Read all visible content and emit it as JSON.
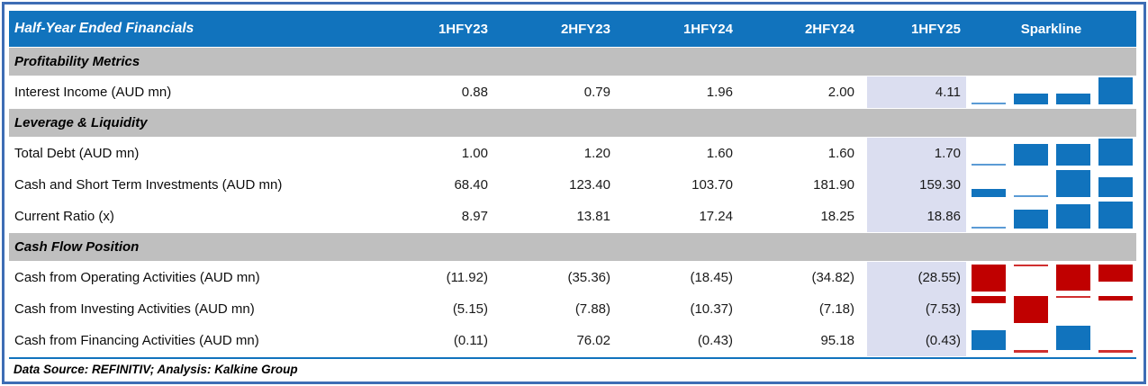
{
  "table": {
    "title": "Half-Year Ended Financials",
    "columns": [
      "1HFY23",
      "2HFY23",
      "1HFY24",
      "2HFY24",
      "1HFY25"
    ],
    "sparkline_header": "Sparkline",
    "sections": [
      {
        "label": "Profitability Metrics",
        "rows": [
          {
            "label": "Interest Income (AUD mn)",
            "values": [
              "0.88",
              "0.79",
              "1.96",
              "2.00",
              "4.11"
            ],
            "spark": [
              0.79,
              1.96,
              2.0,
              4.11
            ]
          }
        ]
      },
      {
        "label": "Leverage & Liquidity",
        "rows": [
          {
            "label": "Total Debt (AUD mn)",
            "values": [
              "1.00",
              "1.20",
              "1.60",
              "1.60",
              "1.70"
            ],
            "spark": [
              1.2,
              1.6,
              1.6,
              1.7
            ]
          },
          {
            "label": "Cash and Short Term Investments (AUD mn)",
            "values": [
              "68.40",
              "123.40",
              "103.70",
              "181.90",
              "159.30"
            ],
            "spark": [
              123.4,
              103.7,
              181.9,
              159.3
            ]
          },
          {
            "label": "Current Ratio (x)",
            "values": [
              "8.97",
              "13.81",
              "17.24",
              "18.25",
              "18.86"
            ],
            "spark": [
              13.81,
              17.24,
              18.25,
              18.86
            ]
          }
        ]
      },
      {
        "label": "Cash Flow Position",
        "rows": [
          {
            "label": "Cash from Operating Activities (AUD mn)",
            "values": [
              "(11.92)",
              "(35.36)",
              "(18.45)",
              "(34.82)",
              "(28.55)"
            ],
            "spark": [
              -35.36,
              -18.45,
              -34.82,
              -28.55
            ]
          },
          {
            "label": "Cash from Investing Activities (AUD mn)",
            "values": [
              "(5.15)",
              "(7.88)",
              "(10.37)",
              "(7.18)",
              "(7.53)"
            ],
            "spark": [
              -7.88,
              -10.37,
              -7.18,
              -7.53
            ]
          },
          {
            "label": "Cash from Financing Activities (AUD mn)",
            "values": [
              "(0.11)",
              "76.02",
              "(0.43)",
              "95.18",
              "(0.43)"
            ],
            "spark": [
              76.02,
              -0.43,
              95.18,
              -0.43
            ]
          }
        ]
      }
    ],
    "footer": "Data Source: REFINITIV; Analysis: Kalkine Group"
  },
  "colors": {
    "header_bg": "#1173bd",
    "section_band_bg": "#bfbfbf",
    "highlight_column_bg": "#dbdef0",
    "sparkline_positive": "#1173bd",
    "sparkline_negative": "#c00000",
    "outer_frame": "#3e6db5"
  },
  "chart_data": {
    "type": "table",
    "title": "Half-Year Ended Financials",
    "categories": [
      "1HFY23",
      "2HFY23",
      "1HFY24",
      "2HFY24",
      "1HFY25"
    ],
    "series": [
      {
        "name": "Interest Income (AUD mn)",
        "section": "Profitability Metrics",
        "values": [
          0.88,
          0.79,
          1.96,
          2.0,
          4.11
        ]
      },
      {
        "name": "Total Debt (AUD mn)",
        "section": "Leverage & Liquidity",
        "values": [
          1.0,
          1.2,
          1.6,
          1.6,
          1.7
        ]
      },
      {
        "name": "Cash and Short Term Investments (AUD mn)",
        "section": "Leverage & Liquidity",
        "values": [
          68.4,
          123.4,
          103.7,
          181.9,
          159.3
        ]
      },
      {
        "name": "Current Ratio (x)",
        "section": "Leverage & Liquidity",
        "values": [
          8.97,
          13.81,
          17.24,
          18.25,
          18.86
        ]
      },
      {
        "name": "Cash from Operating Activities (AUD mn)",
        "section": "Cash Flow Position",
        "values": [
          -11.92,
          -35.36,
          -18.45,
          -34.82,
          -28.55
        ]
      },
      {
        "name": "Cash from Investing Activities (AUD mn)",
        "section": "Cash Flow Position",
        "values": [
          -5.15,
          -7.88,
          -10.37,
          -7.18,
          -7.53
        ]
      },
      {
        "name": "Cash from Financing Activities (AUD mn)",
        "section": "Cash Flow Position",
        "values": [
          -0.11,
          76.02,
          -0.43,
          95.18,
          -0.43
        ]
      }
    ],
    "sparkline": {
      "type": "bar",
      "periods": [
        "2HFY23",
        "1HFY24",
        "2HFY24",
        "1HFY25"
      ],
      "axis": "auto-min (Excel-style: lowest value shown as thin line)",
      "positive_color": "#1173bd",
      "negative_color": "#c00000"
    },
    "notes": "Values in parentheses are negative. 1HFY25 column highlighted lavender."
  }
}
